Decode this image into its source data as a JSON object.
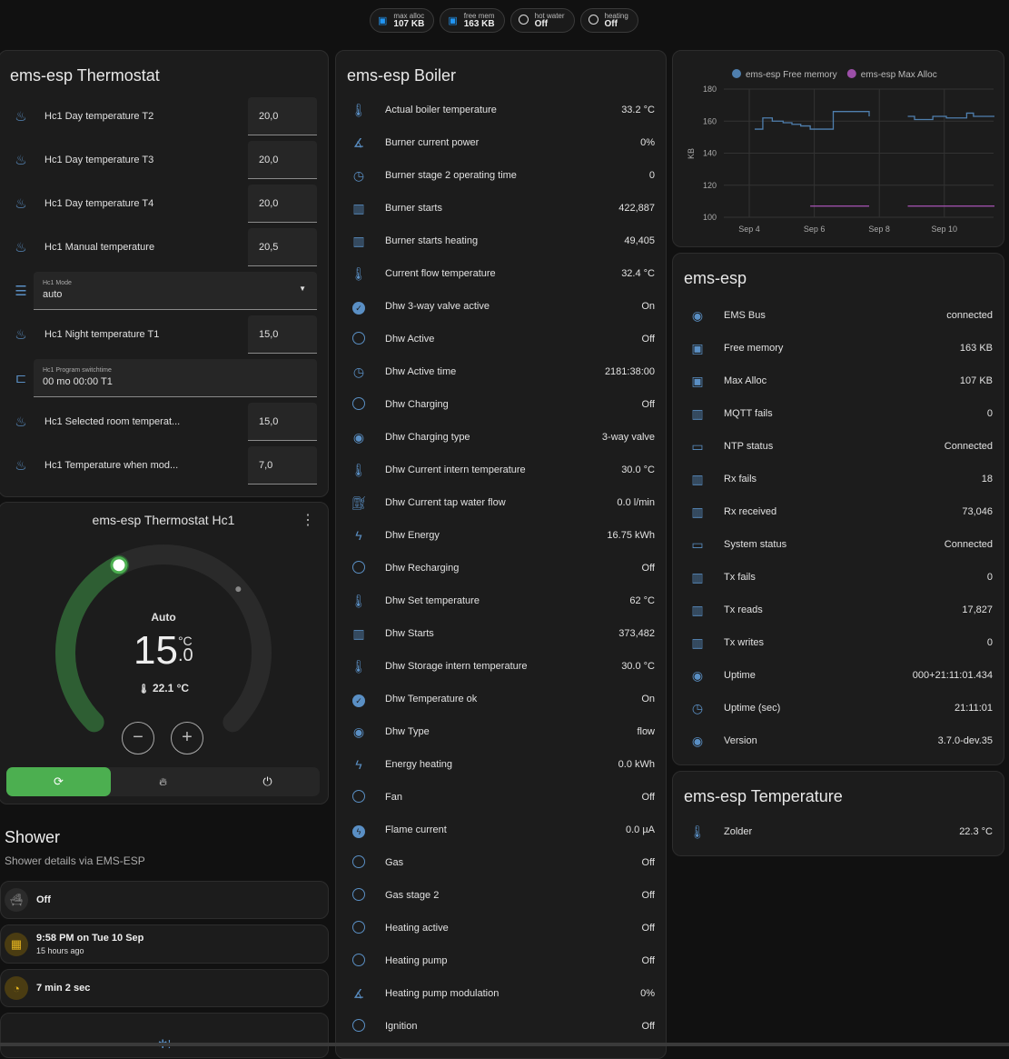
{
  "badges": [
    {
      "label": "max alloc",
      "value": "107 KB",
      "icon": "chip-icon"
    },
    {
      "label": "free mem",
      "value": "163 KB",
      "icon": "chip-icon"
    },
    {
      "label": "hot water",
      "value": "Off",
      "icon": "circle-outline-icon"
    },
    {
      "label": "heating",
      "value": "Off",
      "icon": "circle-outline-icon"
    }
  ],
  "thermostat": {
    "title": "ems-esp Thermostat",
    "rows": [
      {
        "label": "Hc1 Day temperature T2",
        "value": "20,0",
        "type": "number"
      },
      {
        "label": "Hc1 Day temperature T3",
        "value": "20,0",
        "type": "number"
      },
      {
        "label": "Hc1 Day temperature T4",
        "value": "20,0",
        "type": "number"
      },
      {
        "label": "Hc1 Manual temperature",
        "value": "20,5",
        "type": "number"
      },
      {
        "label": "Hc1 Mode",
        "value": "auto",
        "type": "select"
      },
      {
        "label": "Hc1 Night temperature T1",
        "value": "15,0",
        "type": "number"
      },
      {
        "label": "Hc1 Program switchtime",
        "value": "00 mo 00:00 T1",
        "type": "text"
      },
      {
        "label": "Hc1 Selected room temperat...",
        "value": "15,0",
        "type": "number"
      },
      {
        "label": "Hc1 Temperature when mod...",
        "value": "7,0",
        "type": "number"
      }
    ]
  },
  "climate": {
    "title": "ems-esp Thermostat Hc1",
    "mode": "Auto",
    "target_int": "15",
    "target_dec": ".0",
    "unit": "°C",
    "current": "22.1 °C",
    "min": 5,
    "max": 30,
    "target": 15,
    "current_value": 22.1,
    "accent": "#4caf50",
    "modes": [
      {
        "icon": "auto-mode-icon",
        "active": true
      },
      {
        "icon": "flame-icon",
        "active": false
      },
      {
        "icon": "power-icon",
        "active": false
      }
    ]
  },
  "shower": {
    "title": "Shower",
    "subtitle": "Shower details via EMS-ESP",
    "items": [
      {
        "icon": "bathtub-icon",
        "primary": "Off"
      },
      {
        "icon": "calendar-icon",
        "primary": "9:58 PM on Tue 10 Sep",
        "secondary": "15 hours ago"
      },
      {
        "icon": "timer-icon",
        "primary": "7 min 2 sec"
      }
    ]
  },
  "boiler": {
    "title": "ems-esp Boiler",
    "rows": [
      {
        "icon": "thermometer",
        "label": "Actual boiler temperature",
        "value": "33.2 °C"
      },
      {
        "icon": "angle",
        "label": "Burner current power",
        "value": "0%"
      },
      {
        "icon": "history",
        "label": "Burner stage 2 operating time",
        "value": "0"
      },
      {
        "icon": "counter",
        "label": "Burner starts",
        "value": "422,887"
      },
      {
        "icon": "counter",
        "label": "Burner starts heating",
        "value": "49,405"
      },
      {
        "icon": "thermometer",
        "label": "Current flow temperature",
        "value": "32.4 °C"
      },
      {
        "icon": "check-circle",
        "label": "Dhw 3-way valve active",
        "value": "On"
      },
      {
        "icon": "circle",
        "label": "Dhw Active",
        "value": "Off"
      },
      {
        "icon": "history",
        "label": "Dhw Active time",
        "value": "2181:38:00"
      },
      {
        "icon": "circle",
        "label": "Dhw Charging",
        "value": "Off"
      },
      {
        "icon": "eye",
        "label": "Dhw Charging type",
        "value": "3-way valve"
      },
      {
        "icon": "thermometer",
        "label": "Dhw Current intern temperature",
        "value": "30.0 °C"
      },
      {
        "icon": "water-pump",
        "label": "Dhw Current tap water flow",
        "value": "0.0 l/min"
      },
      {
        "icon": "flash",
        "label": "Dhw Energy",
        "value": "16.75 kWh"
      },
      {
        "icon": "circle",
        "label": "Dhw Recharging",
        "value": "Off"
      },
      {
        "icon": "thermometer",
        "label": "Dhw Set temperature",
        "value": "62 °C"
      },
      {
        "icon": "counter",
        "label": "Dhw Starts",
        "value": "373,482"
      },
      {
        "icon": "thermometer",
        "label": "Dhw Storage intern temperature",
        "value": "30.0 °C"
      },
      {
        "icon": "check-circle",
        "label": "Dhw Temperature ok",
        "value": "On"
      },
      {
        "icon": "eye",
        "label": "Dhw Type",
        "value": "flow"
      },
      {
        "icon": "flash",
        "label": "Energy heating",
        "value": "0.0 kWh"
      },
      {
        "icon": "circle",
        "label": "Fan",
        "value": "Off"
      },
      {
        "icon": "flash-circle",
        "label": "Flame current",
        "value": "0.0 µA"
      },
      {
        "icon": "circle",
        "label": "Gas",
        "value": "Off"
      },
      {
        "icon": "circle",
        "label": "Gas stage 2",
        "value": "Off"
      },
      {
        "icon": "circle",
        "label": "Heating active",
        "value": "Off"
      },
      {
        "icon": "circle",
        "label": "Heating pump",
        "value": "Off"
      },
      {
        "icon": "angle",
        "label": "Heating pump modulation",
        "value": "0%"
      },
      {
        "icon": "circle",
        "label": "Ignition",
        "value": "Off"
      }
    ]
  },
  "system": {
    "title": "ems-esp",
    "rows": [
      {
        "icon": "eye",
        "label": "EMS Bus",
        "value": "connected"
      },
      {
        "icon": "chip",
        "label": "Free memory",
        "value": "163 KB"
      },
      {
        "icon": "chip",
        "label": "Max Alloc",
        "value": "107 KB"
      },
      {
        "icon": "counter",
        "label": "MQTT fails",
        "value": "0"
      },
      {
        "icon": "monitor-check",
        "label": "NTP status",
        "value": "Connected"
      },
      {
        "icon": "counter",
        "label": "Rx fails",
        "value": "18"
      },
      {
        "icon": "counter",
        "label": "Rx received",
        "value": "73,046"
      },
      {
        "icon": "monitor-check",
        "label": "System status",
        "value": "Connected"
      },
      {
        "icon": "counter",
        "label": "Tx fails",
        "value": "0"
      },
      {
        "icon": "counter",
        "label": "Tx reads",
        "value": "17,827"
      },
      {
        "icon": "counter",
        "label": "Tx writes",
        "value": "0"
      },
      {
        "icon": "eye",
        "label": "Uptime",
        "value": "000+21:11:01.434"
      },
      {
        "icon": "history",
        "label": "Uptime (sec)",
        "value": "21:11:01"
      },
      {
        "icon": "eye",
        "label": "Version",
        "value": "3.7.0-dev.35"
      }
    ]
  },
  "temperature": {
    "title": "ems-esp Temperature",
    "rows": [
      {
        "icon": "thermometer",
        "label": "Zolder",
        "value": "22.3 °C"
      }
    ]
  },
  "chart_data": {
    "type": "line",
    "ylabel": "KB",
    "ylim": [
      100,
      180
    ],
    "yticks": [
      "100",
      "120",
      "140",
      "160",
      "180"
    ],
    "xticks": [
      "Sep 4",
      "Sep 6",
      "Sep 8",
      "Sep 10"
    ],
    "grid": true,
    "legend": "top",
    "series": [
      {
        "name": "ems-esp Free memory",
        "color": "#4f7fae",
        "step": true,
        "points": [
          [
            "Sep 4 04:00",
            155
          ],
          [
            "Sep 4 10:00",
            162
          ],
          [
            "Sep 4 17:00",
            160
          ],
          [
            "Sep 5 01:00",
            159
          ],
          [
            "Sep 5 07:30",
            158
          ],
          [
            "Sep 5 14:00",
            157
          ],
          [
            "Sep 5 21:00",
            155
          ],
          [
            "Sep 6 14:00",
            166
          ],
          [
            "Sep 7 16:30",
            163
          ],
          null,
          [
            "Sep 8 21:00",
            163
          ],
          [
            "Sep 9 02:00",
            161
          ],
          [
            "Sep 9 13:30",
            161
          ],
          [
            "Sep 9 15:30",
            163
          ],
          [
            "Sep 10 01:30",
            162
          ],
          [
            "Sep 10 16:30",
            165
          ],
          [
            "Sep 10 21:30",
            163
          ],
          [
            "Sep 11 13:00",
            163
          ]
        ]
      },
      {
        "name": "ems-esp Max Alloc",
        "color": "#9c4fa8",
        "step": true,
        "points": [
          [
            "Sep 5 21:00",
            107
          ],
          [
            "Sep 7 16:30",
            107
          ],
          null,
          [
            "Sep 8 21:00",
            107
          ],
          [
            "Sep 11 13:00",
            107
          ]
        ]
      }
    ]
  }
}
